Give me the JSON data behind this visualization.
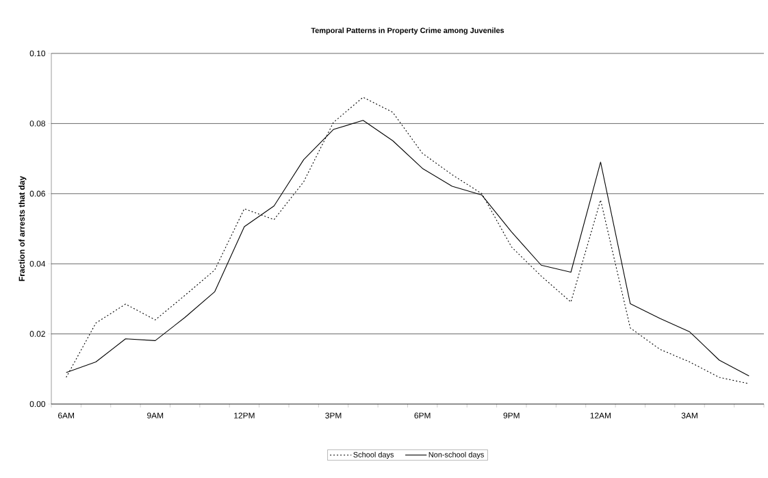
{
  "chart_data": {
    "type": "line",
    "title": "Temporal Patterns in Property Crime among Juveniles",
    "ylabel": "Fraction of arrests that day",
    "categories": [
      "6AM",
      null,
      null,
      "9AM",
      null,
      null,
      "12PM",
      null,
      null,
      "3PM",
      null,
      null,
      "6PM",
      null,
      null,
      "9PM",
      null,
      null,
      "12AM",
      null,
      null,
      "3AM",
      null,
      null
    ],
    "series": [
      {
        "name": "School days",
        "color": "#000000",
        "line_style": "dotted",
        "values": [
          0.0076,
          0.0231,
          0.0285,
          0.024,
          0.031,
          0.0382,
          0.0557,
          0.0526,
          0.0634,
          0.0803,
          0.0875,
          0.0832,
          0.0715,
          0.0654,
          0.06,
          0.0448,
          0.0365,
          0.0291,
          0.0582,
          0.0217,
          0.0156,
          0.012,
          0.0076,
          0.0058
        ]
      },
      {
        "name": "Non-school days",
        "color": "#000000",
        "line_style": "solid",
        "values": [
          0.009,
          0.012,
          0.0186,
          0.0181,
          0.0247,
          0.032,
          0.0506,
          0.0565,
          0.0697,
          0.0783,
          0.0809,
          0.0751,
          0.0672,
          0.0621,
          0.0596,
          0.0491,
          0.0396,
          0.0376,
          0.069,
          0.0286,
          0.0244,
          0.0206,
          0.0125,
          0.008
        ]
      }
    ],
    "ylim": [
      0,
      0.1
    ],
    "yticks": [
      {
        "value": 0,
        "label": "0.00"
      },
      {
        "value": 0.02,
        "label": "0.02"
      },
      {
        "value": 0.04,
        "label": "0.04"
      },
      {
        "value": 0.06,
        "label": "0.06"
      },
      {
        "value": 0.08,
        "label": "0.08"
      },
      {
        "value": 0.1,
        "label": "0.10"
      }
    ],
    "grid": "y",
    "legend": "bottom",
    "marker": "none"
  }
}
